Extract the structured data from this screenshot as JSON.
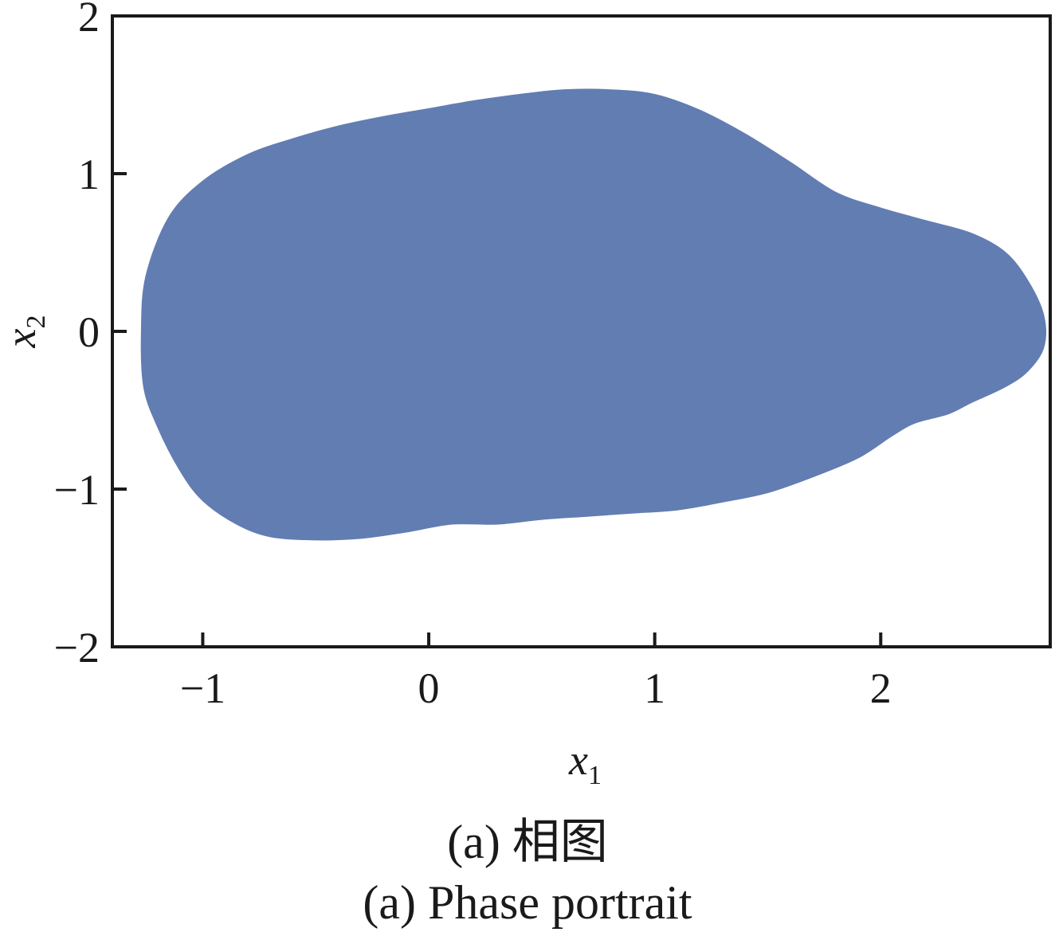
{
  "chart_data": {
    "type": "area",
    "title": "",
    "xlabel": "x",
    "xlabel_sub": "1",
    "ylabel": "x",
    "ylabel_sub": "2",
    "xlim": [
      -1.4,
      2.75
    ],
    "ylim": [
      -2,
      2
    ],
    "xticks": [
      -1,
      0,
      1,
      2
    ],
    "yticks": [
      -2,
      -1,
      0,
      1,
      2
    ],
    "xtick_labels": [
      "−1",
      "0",
      "1",
      "2"
    ],
    "ytick_labels": [
      "−2",
      "−1",
      "0",
      "1",
      "2"
    ],
    "grid": false,
    "fill_color": "#627db2",
    "series": [
      {
        "x": [
          -1.27,
          -1.25,
          -1.15,
          -1.0,
          -0.8,
          -0.6,
          -0.4,
          -0.2,
          0.0,
          0.2,
          0.4,
          0.6,
          0.8,
          1.0,
          1.2,
          1.4,
          1.6,
          1.8,
          2.0,
          2.2,
          2.4,
          2.55,
          2.65,
          2.72,
          2.72,
          2.65,
          2.55,
          2.4,
          2.3,
          2.15,
          2.05,
          1.9,
          1.7,
          1.5,
          1.3,
          1.1,
          0.9,
          0.7,
          0.5,
          0.3,
          0.1,
          -0.1,
          -0.3,
          -0.5,
          -0.7,
          -0.85,
          -1.0,
          -1.1,
          -1.2,
          -1.26
        ],
        "y": [
          0.0,
          0.35,
          0.72,
          0.95,
          1.12,
          1.22,
          1.3,
          1.36,
          1.41,
          1.46,
          1.5,
          1.53,
          1.53,
          1.5,
          1.4,
          1.25,
          1.07,
          0.88,
          0.78,
          0.7,
          0.62,
          0.5,
          0.32,
          0.1,
          -0.1,
          -0.25,
          -0.35,
          -0.45,
          -0.52,
          -0.58,
          -0.66,
          -0.8,
          -0.92,
          -1.02,
          -1.08,
          -1.13,
          -1.15,
          -1.17,
          -1.19,
          -1.22,
          -1.22,
          -1.27,
          -1.31,
          -1.32,
          -1.3,
          -1.22,
          -1.07,
          -0.88,
          -0.6,
          -0.35
        ]
      }
    ]
  },
  "captions": {
    "cn": "(a)  相图",
    "en": "(a)  Phase portrait"
  }
}
